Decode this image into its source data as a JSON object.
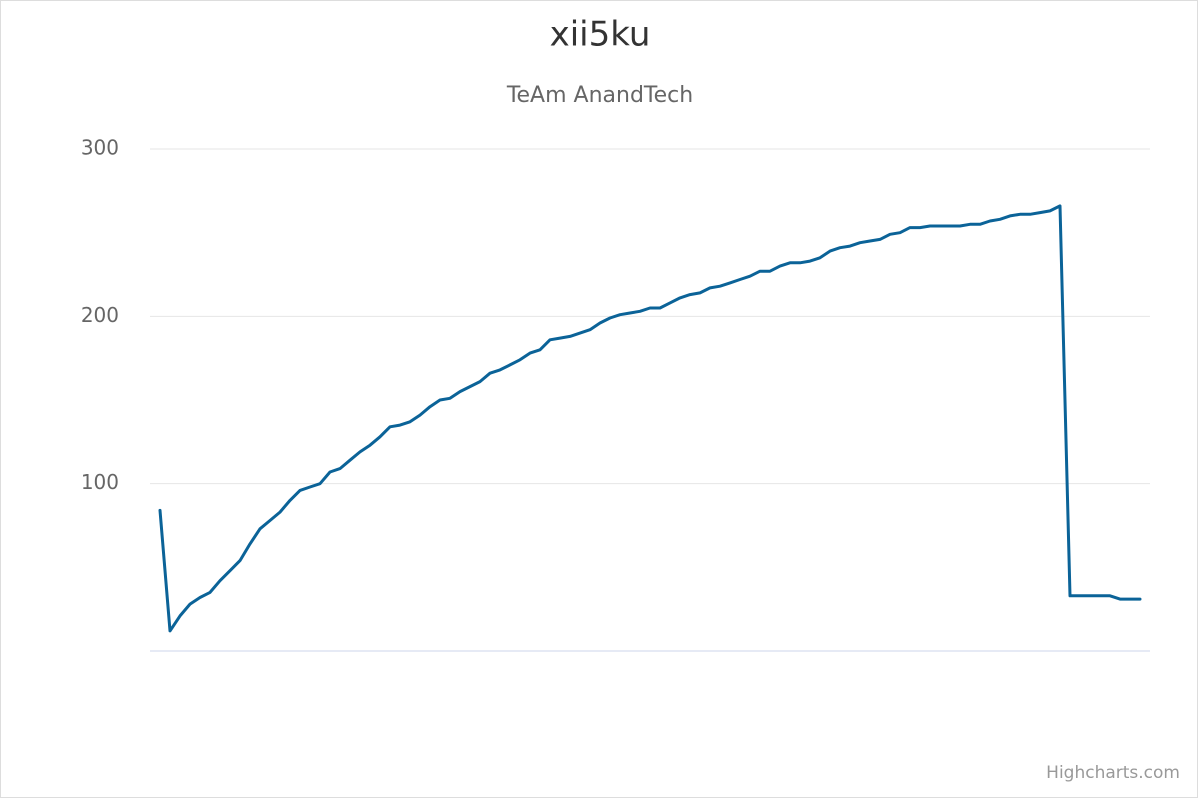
{
  "chart_data": {
    "type": "line",
    "title": "xii5ku",
    "subtitle": "TeAm AnandTech",
    "credits": "Highcharts.com",
    "color": "#0b6398",
    "grid": true,
    "ylim": [
      0,
      300
    ],
    "yticks": [
      100,
      200,
      300
    ],
    "values": [
      84,
      12,
      21,
      28,
      32,
      35,
      42,
      48,
      54,
      64,
      73,
      78,
      83,
      90,
      96,
      98,
      100,
      107,
      109,
      114,
      119,
      123,
      128,
      134,
      135,
      137,
      141,
      146,
      150,
      151,
      155,
      158,
      161,
      166,
      168,
      171,
      174,
      178,
      180,
      186,
      187,
      188,
      190,
      192,
      196,
      199,
      201,
      202,
      203,
      205,
      205,
      208,
      211,
      213,
      214,
      217,
      218,
      220,
      222,
      224,
      227,
      227,
      230,
      232,
      232,
      233,
      235,
      239,
      241,
      242,
      244,
      245,
      246,
      249,
      250,
      253,
      253,
      254,
      254,
      254,
      254,
      255,
      255,
      257,
      258,
      260,
      261,
      261,
      262,
      263,
      266,
      33,
      33,
      33,
      33,
      33,
      31,
      31,
      31
    ]
  }
}
